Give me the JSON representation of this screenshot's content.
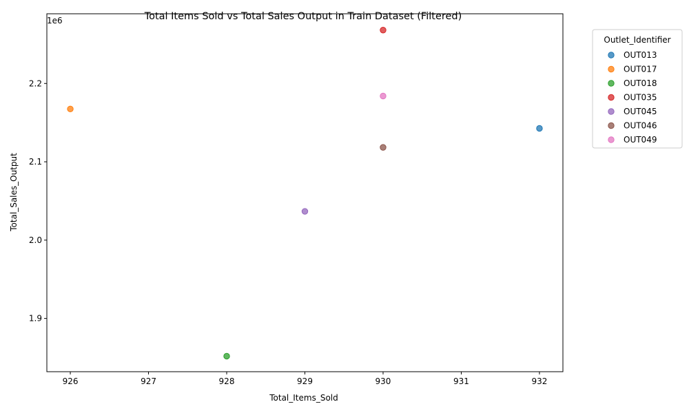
{
  "chart_data": {
    "type": "scatter",
    "title": "Total Items Sold vs Total Sales Output in Train Dataset (Filtered)",
    "xlabel": "Total_Items_Sold",
    "ylabel": "Total_Sales_Output",
    "y_offset_label": "1e6",
    "xlim": [
      925.7,
      932.3
    ],
    "ylim": [
      1832000,
      2289000
    ],
    "xticks": [
      926,
      927,
      928,
      929,
      930,
      931,
      932
    ],
    "yticks": [
      1900000,
      2000000,
      2100000,
      2200000
    ],
    "ytick_labels": [
      "1.9",
      "2.0",
      "2.1",
      "2.2"
    ],
    "grid": false,
    "legend": {
      "title": "Outlet_Identifier",
      "placement": "outside-upper-right"
    },
    "series": [
      {
        "name": "OUT013",
        "color": "#1f77b4",
        "points": [
          {
            "x": 932,
            "y": 2142664
          }
        ]
      },
      {
        "name": "OUT017",
        "color": "#ff7f0e",
        "points": [
          {
            "x": 926,
            "y": 2167465
          }
        ]
      },
      {
        "name": "OUT018",
        "color": "#2ca02c",
        "points": [
          {
            "x": 928,
            "y": 1851823
          }
        ]
      },
      {
        "name": "OUT035",
        "color": "#d62728",
        "points": [
          {
            "x": 930,
            "y": 2268123
          }
        ]
      },
      {
        "name": "OUT045",
        "color": "#9467bd",
        "points": [
          {
            "x": 929,
            "y": 2036725
          }
        ]
      },
      {
        "name": "OUT046",
        "color": "#8c564b",
        "points": [
          {
            "x": 930,
            "y": 2118395
          }
        ]
      },
      {
        "name": "OUT049",
        "color": "#e377c2",
        "points": [
          {
            "x": 930,
            "y": 2183970
          }
        ]
      }
    ]
  }
}
